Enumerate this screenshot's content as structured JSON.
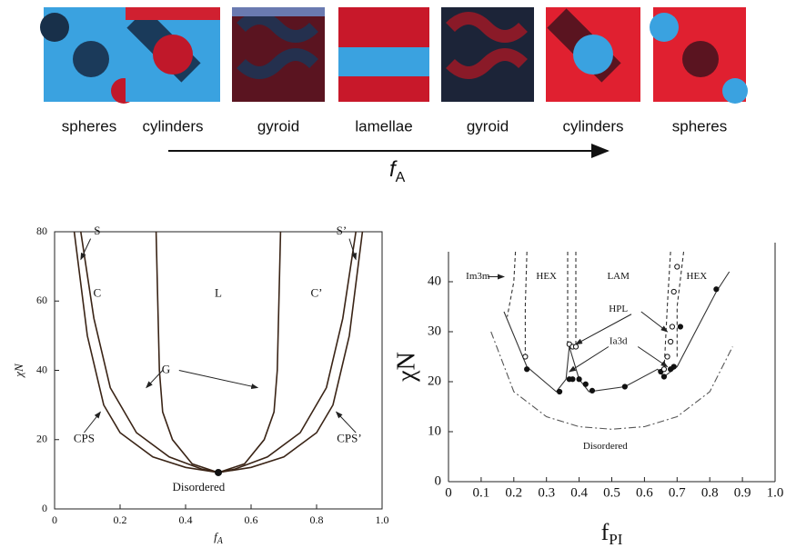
{
  "top": {
    "labels": [
      "spheres",
      "cylinders",
      "gyroid",
      "lamellae",
      "gyroid",
      "cylinders",
      "spheres"
    ],
    "axis_label": "f",
    "axis_label_sub": "A"
  },
  "chart_data": [
    {
      "type": "line",
      "x_label": "f",
      "x_label_sub": "A",
      "y_label": "χN",
      "xlim": [
        0,
        1
      ],
      "ylim": [
        0,
        80
      ],
      "xticks": [
        0,
        0.2,
        0.4,
        0.6,
        0.8,
        {
          "value": 1,
          "label": "1.0"
        }
      ],
      "yticks": [
        0,
        20,
        40,
        60,
        80
      ],
      "annotations": [
        "S",
        "C",
        "L",
        "C’",
        "S’",
        "G",
        "CPS",
        "CPS’",
        "Disordered"
      ],
      "series": [
        {
          "style": "solid",
          "color": "#3a2416",
          "x": [
            0.06,
            0.1,
            0.15,
            0.2,
            0.3,
            0.4,
            0.5,
            0.6,
            0.7,
            0.8,
            0.85,
            0.9,
            0.94
          ],
          "y": [
            80,
            50,
            30,
            22,
            15,
            12,
            10.5,
            12,
            15,
            22,
            30,
            50,
            80
          ]
        },
        {
          "style": "solid",
          "color": "#3a2416",
          "x": [
            0.08,
            0.12,
            0.17,
            0.25,
            0.35,
            0.45,
            0.5,
            0.55,
            0.65,
            0.75,
            0.83,
            0.88,
            0.92
          ],
          "y": [
            80,
            55,
            35,
            22,
            15,
            11.5,
            10.5,
            11.5,
            15,
            22,
            35,
            55,
            80
          ]
        },
        {
          "style": "solid",
          "color": "#3a2416",
          "x": [
            0.31,
            0.315,
            0.32,
            0.33,
            0.36,
            0.42,
            0.5,
            0.58,
            0.64,
            0.67,
            0.68,
            0.685,
            0.69
          ],
          "y": [
            80,
            60,
            40,
            28,
            20,
            13,
            10.5,
            13,
            20,
            28,
            40,
            60,
            80
          ]
        },
        {
          "style": "dot",
          "color": "#111111",
          "x": [
            0.5
          ],
          "y": [
            10.5
          ]
        }
      ]
    },
    {
      "type": "line",
      "x_label": "f",
      "x_label_sub": "PI",
      "y_label": "χN",
      "xlim": [
        0,
        1
      ],
      "ylim": [
        0,
        46
      ],
      "xticks": [
        0,
        0.1,
        0.2,
        0.3,
        0.4,
        0.5,
        0.6,
        0.7,
        0.8,
        0.9,
        {
          "value": 1,
          "label": "1.0"
        }
      ],
      "yticks": [
        0,
        10,
        20,
        30,
        40
      ],
      "annotations": [
        "Im3m",
        "HEX",
        "LAM",
        "HEX",
        "HPL",
        "Ia3d",
        "Disordered"
      ],
      "series": [
        {
          "style": "solid",
          "color": "#333333",
          "x": [
            0.17,
            0.24,
            0.33,
            0.36,
            0.37,
            0.4,
            0.43,
            0.54,
            0.64,
            0.66,
            0.7,
            0.82,
            0.86
          ],
          "y": [
            34,
            23,
            18,
            20.5,
            27,
            20.5,
            18,
            19,
            22.5,
            21,
            23,
            38,
            42
          ]
        },
        {
          "style": "dashdot",
          "color": "#555555",
          "x": [
            0.13,
            0.2,
            0.3,
            0.4,
            0.5,
            0.6,
            0.7,
            0.8,
            0.87
          ],
          "y": [
            30,
            18,
            13,
            11,
            10.5,
            11,
            13,
            18,
            27
          ]
        },
        {
          "style": "dashed",
          "color": "#333333",
          "x": [
            0.205,
            0.2,
            0.18
          ],
          "y": [
            46,
            40,
            33
          ]
        },
        {
          "style": "dashed",
          "color": "#333333",
          "x": [
            0.24,
            0.235,
            0.235
          ],
          "y": [
            46,
            35,
            25
          ]
        },
        {
          "style": "dashed",
          "color": "#333333",
          "x": [
            0.365,
            0.365
          ],
          "y": [
            46,
            27
          ]
        },
        {
          "style": "dashed",
          "color": "#333333",
          "x": [
            0.39,
            0.39
          ],
          "y": [
            46,
            27
          ]
        },
        {
          "style": "dashed",
          "color": "#333333",
          "x": [
            0.68,
            0.67,
            0.66
          ],
          "y": [
            46,
            35,
            22
          ]
        },
        {
          "style": "dashed",
          "color": "#333333",
          "x": [
            0.72,
            0.7,
            0.7
          ],
          "y": [
            46,
            35,
            25
          ]
        },
        {
          "style": "filled",
          "color": "#111111",
          "x": [
            0.24,
            0.34,
            0.37,
            0.38,
            0.4,
            0.42,
            0.44,
            0.54,
            0.65,
            0.66,
            0.68,
            0.69,
            0.71,
            0.82
          ],
          "y": [
            22.5,
            18,
            20.5,
            20.5,
            20.5,
            19.5,
            18.2,
            19,
            22,
            21,
            22.5,
            23,
            31,
            38.5
          ]
        },
        {
          "style": "open",
          "color": "#111111",
          "x": [
            0.235,
            0.37,
            0.38,
            0.39,
            0.66,
            0.67,
            0.68,
            0.685,
            0.69,
            0.7
          ],
          "y": [
            25,
            27.5,
            27,
            27,
            22.5,
            25,
            28,
            31,
            38,
            43
          ]
        }
      ]
    }
  ]
}
